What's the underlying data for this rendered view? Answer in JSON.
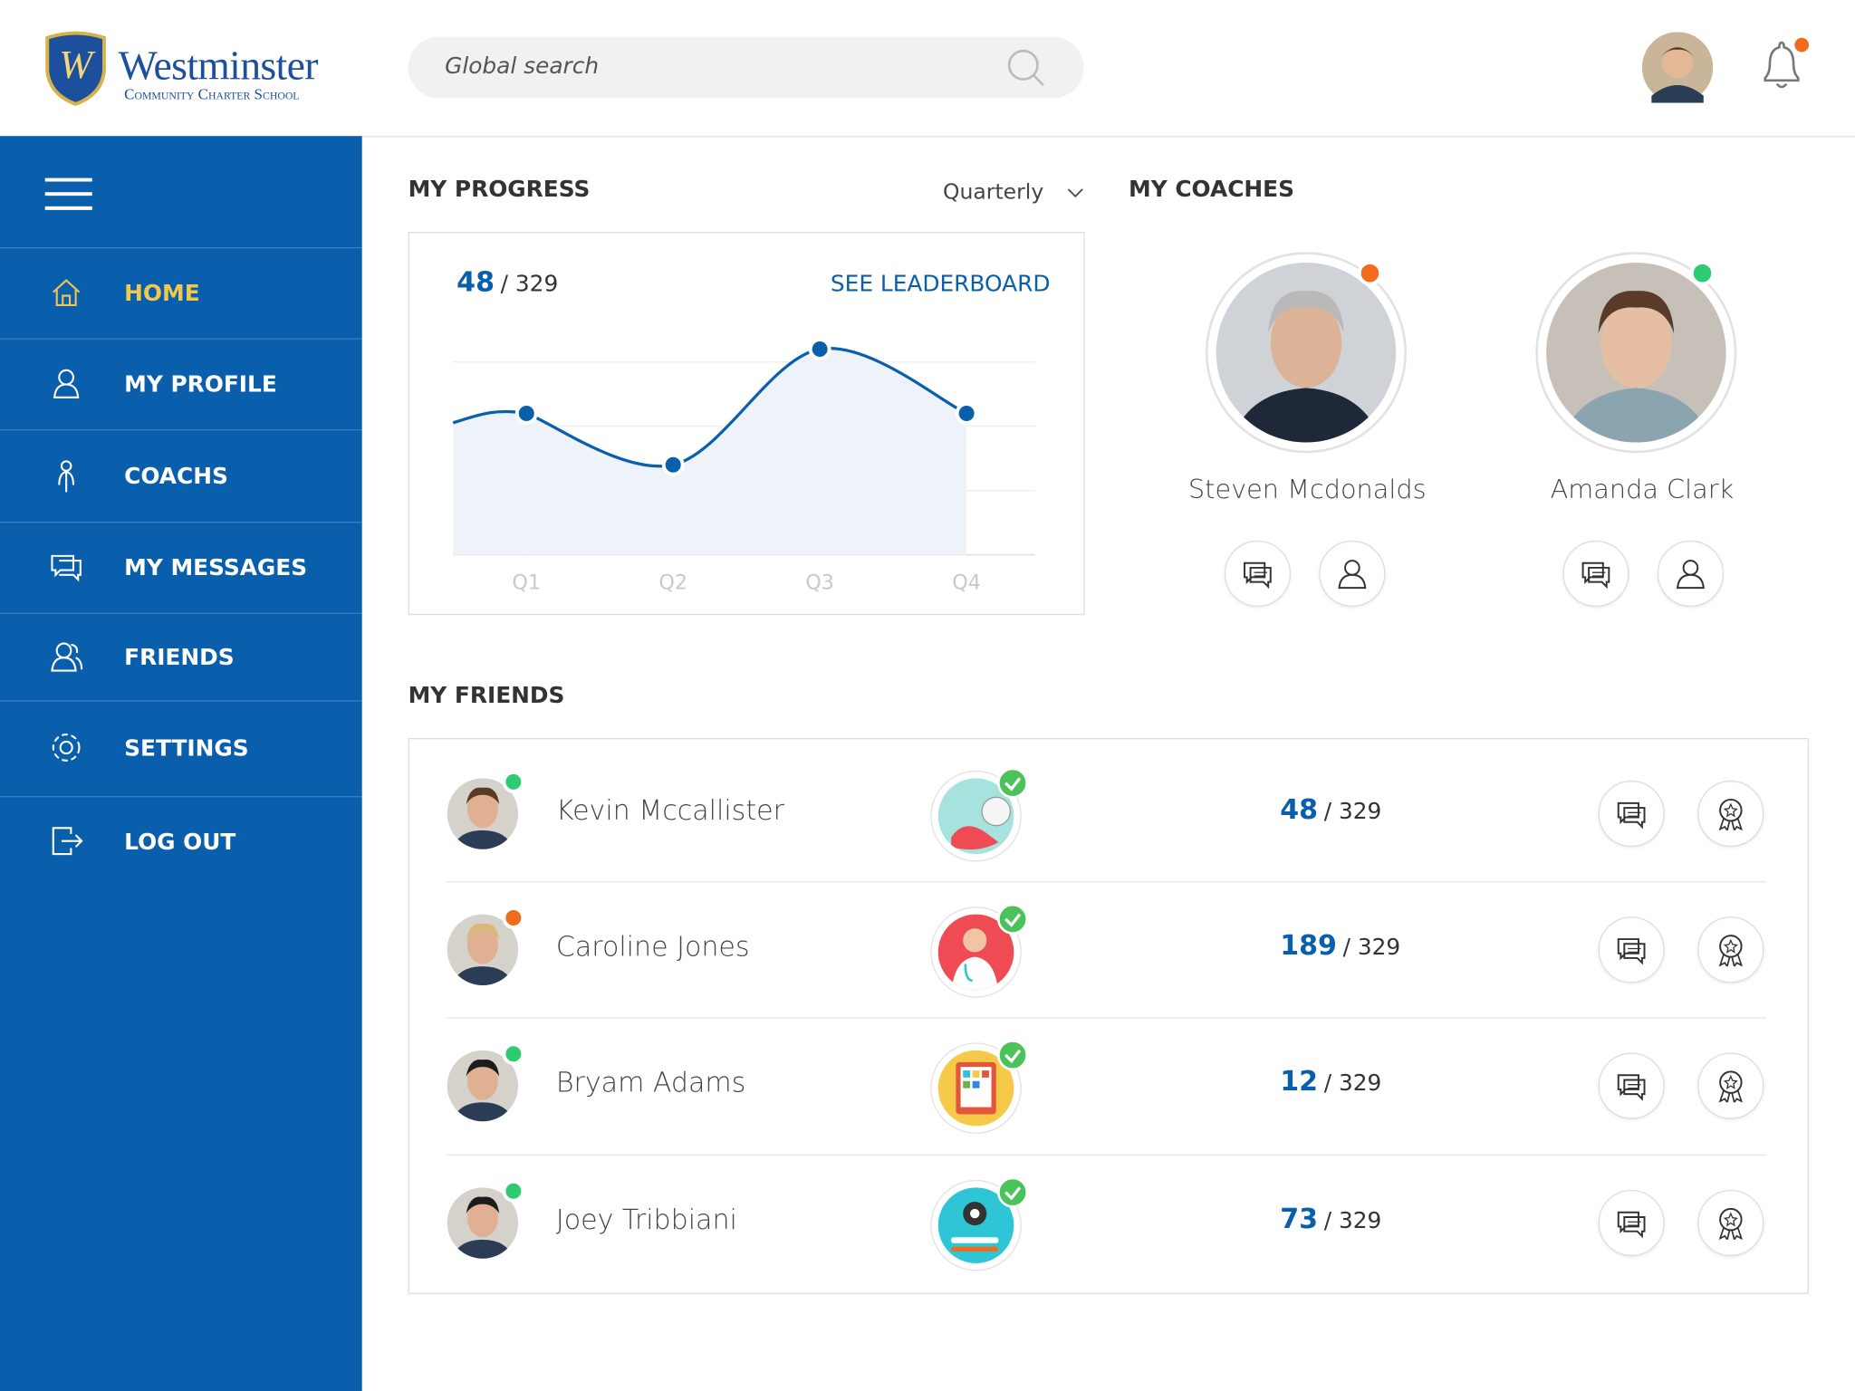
{
  "header": {
    "logo_title": "Westminster",
    "logo_subtitle": "Community Charter School",
    "search_placeholder": "Global search"
  },
  "sidebar": {
    "items": [
      "HOME",
      "MY PROFILE",
      "COACHS",
      "MY MESSAGES",
      "FRIENDS",
      "SETTINGS",
      "LOG OUT"
    ]
  },
  "progress": {
    "title": "MY PROGRESS",
    "period": "Quarterly",
    "score": 48,
    "total": "/ 329",
    "link": "SEE LEADERBOARD"
  },
  "chart_data": {
    "type": "area",
    "categories": [
      "Q1",
      "Q2",
      "Q3",
      "Q4"
    ],
    "values": [
      22,
      14,
      32,
      22
    ],
    "color": "#0a5fad",
    "fill": "#eef3f9",
    "ylim": [
      0,
      30
    ],
    "yticks": [
      0,
      10,
      20,
      30
    ],
    "grid": true
  },
  "coaches": {
    "title": "MY COACHES",
    "people": [
      {
        "name": "Steven Mcdonalds",
        "status_color": "#f26a1b"
      },
      {
        "name": "Amanda Clark",
        "status_color": "#2ecc71"
      }
    ]
  },
  "friends": {
    "title": "MY FRIENDS",
    "rows": [
      {
        "name": "Kevin Mccallister",
        "score": 48,
        "total": "/ 329",
        "status_color": "#2ecc71",
        "badge_color": "#a6e3df"
      },
      {
        "name": "Caroline Jones",
        "score": 189,
        "total": "/ 329",
        "status_color": "#f26a1b",
        "badge_color": "#ef4b55"
      },
      {
        "name": "Bryam Adams",
        "score": 12,
        "total": "/ 329",
        "status_color": "#2ecc71",
        "badge_color": "#f7c948"
      },
      {
        "name": "Joey Tribbiani",
        "score": 73,
        "total": "/ 329",
        "status_color": "#2ecc71",
        "badge_color": "#2ec6d6"
      }
    ]
  }
}
